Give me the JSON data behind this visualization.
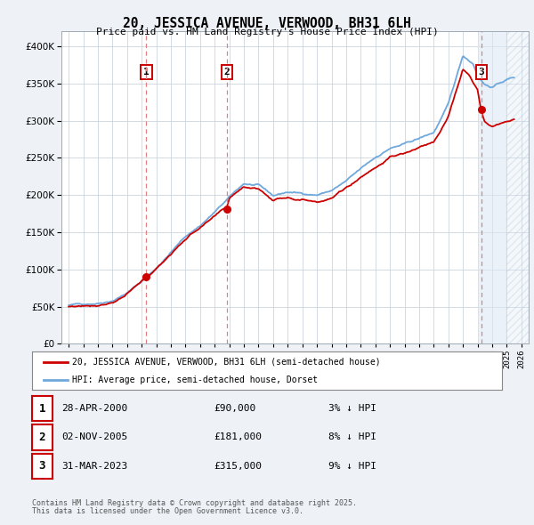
{
  "title": "20, JESSICA AVENUE, VERWOOD, BH31 6LH",
  "subtitle": "Price paid vs. HM Land Registry's House Price Index (HPI)",
  "legend_line1": "20, JESSICA AVENUE, VERWOOD, BH31 6LH (semi-detached house)",
  "legend_line2": "HPI: Average price, semi-detached house, Dorset",
  "footer_line1": "Contains HM Land Registry data © Crown copyright and database right 2025.",
  "footer_line2": "This data is licensed under the Open Government Licence v3.0.",
  "sales": [
    {
      "num": 1,
      "date_label": "28-APR-2000",
      "date_x": 2000.32,
      "price": 90000,
      "pct": "3%",
      "dir": "↓"
    },
    {
      "num": 2,
      "date_label": "02-NOV-2005",
      "date_x": 2005.84,
      "price": 181000,
      "pct": "8%",
      "dir": "↓"
    },
    {
      "num": 3,
      "date_label": "31-MAR-2023",
      "date_x": 2023.25,
      "price": 315000,
      "pct": "9%",
      "dir": "↓"
    }
  ],
  "hpi_color": "#6fa8dc",
  "price_color": "#cc0000",
  "sale_marker_color": "#cc0000",
  "vline_color": "#e06060",
  "background_color": "#eef2f7",
  "plot_bg": "#ffffff",
  "grid_color": "#ccd4dd",
  "xlim": [
    1994.5,
    2026.5
  ],
  "ylim": [
    0,
    420000
  ],
  "yticks": [
    0,
    50000,
    100000,
    150000,
    200000,
    250000,
    300000,
    350000,
    400000
  ]
}
